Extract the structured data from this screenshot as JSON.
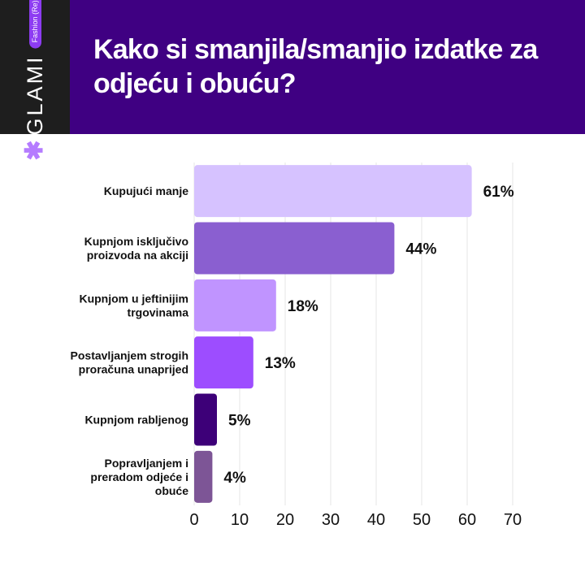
{
  "brand": {
    "logo_text": "GLAMI",
    "tagline": "Fashion (Re)search",
    "star_icon": "asterisk-icon",
    "header_color": "#3f0082",
    "strip_color": "#1e1e1e"
  },
  "chart_data": {
    "type": "bar",
    "orientation": "horizontal",
    "title": "Kako si smanjila/smanjio izdatke za odjeću i obuću?",
    "categories": [
      [
        "Kupujući manje"
      ],
      [
        "Kupnjom isključivo",
        "proizvoda na akciji"
      ],
      [
        "Kupnjom u jeftinijim",
        "trgovinama"
      ],
      [
        "Postavljanjem strogih",
        "proračuna unaprijed"
      ],
      [
        "Kupnjom rabljenog"
      ],
      [
        "Popravljanjem i",
        "preradom odjeće i",
        "obuće"
      ]
    ],
    "values": [
      61,
      44,
      18,
      13,
      5,
      4
    ],
    "value_labels": [
      "61%",
      "44%",
      "18%",
      "13%",
      "5%",
      "4%"
    ],
    "colors": [
      "#d6c2ff",
      "#8a5fd0",
      "#c094ff",
      "#9d4dff",
      "#3d0078",
      "#7d5596"
    ],
    "xlim": [
      0,
      70
    ],
    "xticks": [
      0,
      10,
      20,
      30,
      40,
      50,
      60,
      70
    ],
    "tick_labels": [
      "0",
      "10",
      "20",
      "30",
      "40",
      "50",
      "60",
      "70"
    ],
    "grid": true,
    "legend": "none"
  }
}
